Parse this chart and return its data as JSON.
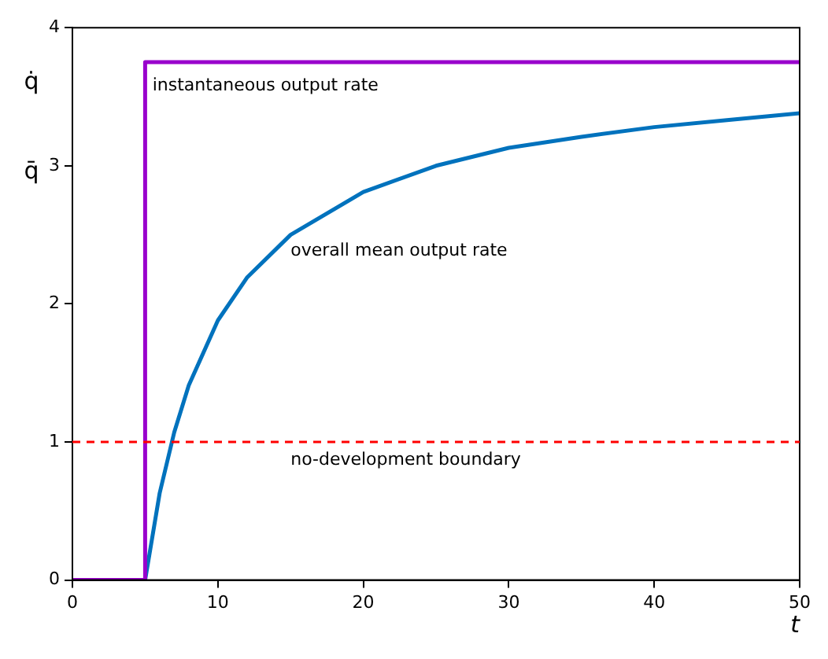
{
  "chart_data": {
    "type": "line",
    "xlabel": "t",
    "xlim": [
      0,
      50
    ],
    "xticks": [
      0,
      10,
      20,
      30,
      40,
      50
    ],
    "ylim": [
      0,
      4
    ],
    "yticks": [
      0,
      1,
      2,
      3,
      4
    ],
    "grid": false,
    "legend": false,
    "marker": "none",
    "series": [
      {
        "name": "instantaneous output rate",
        "type": "line",
        "color": "#9900cc",
        "x": [
          0,
          5,
          5,
          50
        ],
        "values": [
          0,
          0,
          3.75,
          3.75
        ]
      },
      {
        "name": "overall mean output rate",
        "type": "line",
        "color": "#0072bd",
        "x": [
          0,
          5,
          6,
          7,
          8,
          10,
          12,
          15,
          20,
          25,
          30,
          35,
          40,
          45,
          50
        ],
        "values": [
          0,
          0,
          0.63,
          1.07,
          1.41,
          1.88,
          2.19,
          2.5,
          2.81,
          3.0,
          3.13,
          3.21,
          3.28,
          3.33,
          3.38
        ]
      }
    ],
    "ref_lines": [
      {
        "axis": "y",
        "value": 1,
        "label": "no-development boundary",
        "color": "#ff0000",
        "line_style": "dashed"
      }
    ],
    "annotations": [
      "q̇",
      "q̄"
    ]
  }
}
